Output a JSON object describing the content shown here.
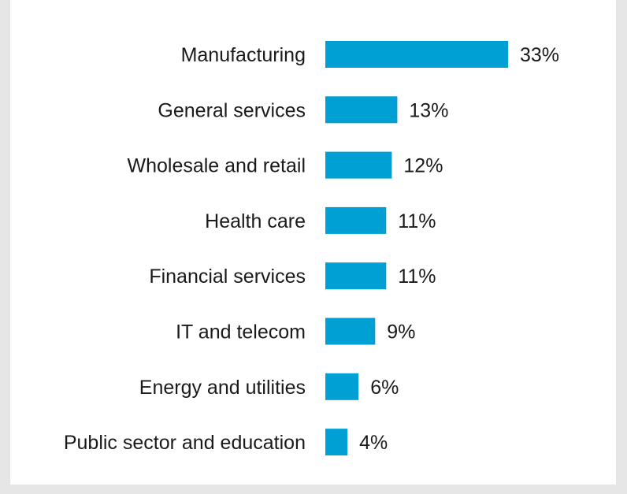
{
  "chart_data": {
    "type": "bar",
    "orientation": "horizontal",
    "title": "",
    "xlabel": "",
    "ylabel": "",
    "categories": [
      "Manufacturing",
      "General services",
      "Wholesale and retail",
      "Health care",
      "Financial services",
      "IT and telecom",
      "Energy and utilities",
      "Public sector and education"
    ],
    "values": [
      33,
      13,
      12,
      11,
      11,
      9,
      6,
      4
    ],
    "value_labels": [
      "33%",
      "13%",
      "12%",
      "11%",
      "11%",
      "9%",
      "6%",
      "4%"
    ],
    "unit": "%",
    "xlim": [
      0,
      33
    ],
    "grid": false,
    "legend": "none",
    "bar_color": "#009fd4",
    "background_color": "#ffffff",
    "border_color": "#e6e6e6"
  }
}
